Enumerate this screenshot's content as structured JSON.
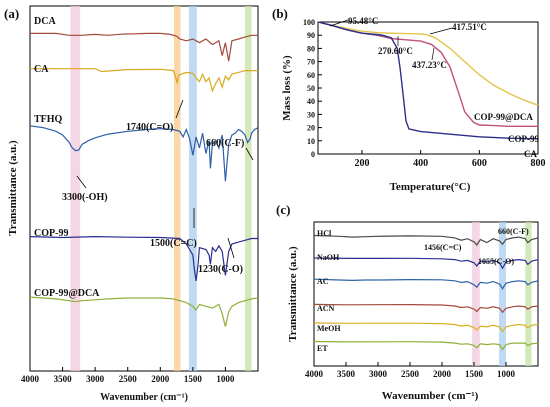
{
  "chart_data": [
    {
      "panel": "(a)",
      "type": "line",
      "title": "",
      "xlabel": "Wavenumber (cm⁻¹)",
      "ylabel": "Transmittance (a.u.)",
      "xlim": [
        4000,
        500
      ],
      "x_ticks": [
        4000,
        3500,
        3000,
        2500,
        2000,
        1500,
        1000
      ],
      "x_tick_labels": [
        "4000",
        "3500",
        "3000",
        "2500",
        "2000",
        "1500",
        "1000"
      ],
      "bands": [
        {
          "x0": 3380,
          "x1": 3230,
          "color": "#f0c8dc"
        },
        {
          "x0": 1790,
          "x1": 1690,
          "color": "#f7c98c"
        },
        {
          "x0": 1560,
          "x1": 1440,
          "color": "#a9cdee"
        },
        {
          "x0": 700,
          "x1": 600,
          "color": "#c6e2a2"
        }
      ],
      "series": [
        {
          "name": "DCA",
          "color": "#a24a3c",
          "base": 0.06,
          "x": [
            4000,
            3600,
            3400,
            3200,
            3000,
            2800,
            2600,
            2400,
            2200,
            2000,
            1850,
            1750,
            1700,
            1600,
            1500,
            1400,
            1300,
            1200,
            1100,
            1050,
            1000,
            950,
            900,
            800,
            700,
            600,
            500
          ],
          "dy": [
            0,
            0,
            0.01,
            0.01,
            0.005,
            0.01,
            0.004,
            0.002,
            0,
            0,
            0.005,
            0.015,
            0.03,
            0.04,
            0.03,
            0.05,
            0.03,
            0.06,
            0.04,
            0.12,
            0.05,
            0.15,
            0.04,
            0.03,
            0.02,
            0.01,
            0.01
          ]
        },
        {
          "name": "CA",
          "color": "#d8a81e",
          "base": 0.165,
          "x": [
            4000,
            3500,
            3000,
            2900,
            2500,
            2000,
            1800,
            1760,
            1740,
            1720,
            1600,
            1500,
            1450,
            1400,
            1350,
            1300,
            1250,
            1200,
            1150,
            1100,
            1050,
            1000,
            950,
            900,
            800,
            700,
            600,
            500
          ],
          "dy": [
            0,
            0,
            0,
            0.015,
            0.005,
            0.003,
            0.01,
            0.05,
            0.08,
            0.035,
            0.02,
            0.025,
            0.05,
            0.07,
            0.03,
            0.07,
            0.05,
            0.12,
            0.08,
            0.05,
            0.1,
            0.04,
            0.06,
            0.03,
            0.02,
            0.01,
            0.01,
            0.01
          ]
        },
        {
          "name": "TFHQ",
          "color": "#2d5fa8",
          "base": 0.335,
          "x": [
            4000,
            3800,
            3600,
            3500,
            3400,
            3350,
            3300,
            3250,
            3200,
            3100,
            3000,
            2800,
            2500,
            2200,
            2000,
            1800,
            1700,
            1650,
            1600,
            1550,
            1500,
            1470,
            1450,
            1400,
            1350,
            1300,
            1250,
            1230,
            1200,
            1150,
            1100,
            1050,
            1000,
            950,
            900,
            850,
            800,
            750,
            700,
            660,
            620,
            600,
            550,
            500
          ],
          "dy": [
            0,
            0.01,
            0.03,
            0.05,
            0.09,
            0.12,
            0.135,
            0.13,
            0.1,
            0.08,
            0.065,
            0.045,
            0.03,
            0.02,
            0.015,
            0.02,
            0.03,
            0.06,
            0.02,
            0.07,
            0.16,
            0.1,
            0.06,
            0.12,
            0.04,
            0.15,
            0.08,
            0.23,
            0.1,
            0.08,
            0.12,
            0.05,
            0.3,
            0.1,
            0.05,
            0.04,
            0.02,
            0.03,
            0.05,
            0.09,
            0.07,
            0.04,
            0.02,
            0.01
          ]
        },
        {
          "name": "COP-99",
          "color": "#2a2f8f",
          "base": 0.665,
          "x": [
            4000,
            3500,
            3000,
            2500,
            2000,
            1700,
            1600,
            1550,
            1500,
            1480,
            1450,
            1420,
            1400,
            1300,
            1250,
            1230,
            1200,
            1150,
            1100,
            1050,
            1000,
            950,
            900,
            800,
            700,
            600,
            500
          ],
          "dy": [
            0,
            0.005,
            0,
            0.003,
            0.005,
            0.01,
            0.04,
            0.07,
            0.1,
            0.17,
            0.24,
            0.15,
            0.06,
            0.07,
            0.1,
            0.15,
            0.06,
            0.08,
            0.05,
            0.08,
            0.21,
            0.08,
            0.04,
            0.03,
            0.02,
            0.01,
            0.01
          ]
        },
        {
          "name": "COP-99@DCA",
          "color": "#8fb03a",
          "base": 0.845,
          "x": [
            4000,
            3600,
            3400,
            3300,
            3200,
            3000,
            2800,
            2500,
            2000,
            1800,
            1700,
            1600,
            1500,
            1450,
            1400,
            1300,
            1200,
            1100,
            1050,
            1000,
            950,
            900,
            800,
            700,
            600,
            500
          ],
          "dy": [
            0,
            0.01,
            0.02,
            0.025,
            0.02,
            0.015,
            0.01,
            0.005,
            0.005,
            0.01,
            0.02,
            0.03,
            0.05,
            0.07,
            0.04,
            0.05,
            0.06,
            0.04,
            0.09,
            0.16,
            0.08,
            0.05,
            0.03,
            0.02,
            0.01,
            0.005
          ]
        }
      ],
      "annotations": [
        {
          "text": "1740(C=O)",
          "x": 1740
        },
        {
          "text": "660(C-F)",
          "x": 660
        },
        {
          "text": "3300(-OH)",
          "x": 3300
        },
        {
          "text": "1500(C=C)",
          "x": 1500
        },
        {
          "text": "1230(C-O)",
          "x": 1230
        }
      ]
    },
    {
      "panel": "(b)",
      "type": "line",
      "title": "",
      "xlabel": "Temperature(°C)",
      "ylabel": "Mass loss (%)",
      "xlim": [
        50,
        800
      ],
      "ylim": [
        0,
        100
      ],
      "x_ticks": [
        200,
        400,
        600,
        800
      ],
      "y_ticks": [
        0,
        10,
        20,
        30,
        40,
        50,
        60,
        70,
        80,
        90,
        100
      ],
      "series": [
        {
          "name": "COP-99@DCA",
          "color": "#e2c44a",
          "x": [
            50,
            95,
            150,
            200,
            250,
            300,
            350,
            400,
            417,
            450,
            500,
            550,
            600,
            650,
            700,
            750,
            800
          ],
          "y": [
            100,
            97.5,
            95,
            93,
            92,
            91.5,
            91.2,
            91,
            90.5,
            88,
            80,
            70,
            60,
            52,
            46,
            41,
            37
          ]
        },
        {
          "name": "COP-99",
          "color": "#c0507e",
          "x": [
            50,
            95,
            150,
            200,
            250,
            270,
            300,
            350,
            400,
            437,
            470,
            500,
            530,
            550,
            580,
            600,
            650,
            700,
            800
          ],
          "y": [
            100,
            97.6,
            94,
            91.5,
            90,
            89,
            87.5,
            86.5,
            85.5,
            83,
            77,
            66,
            46,
            32,
            24,
            22,
            21.5,
            21,
            21
          ]
        },
        {
          "name": "CA",
          "color": "#2b2f8a",
          "x": [
            50,
            95,
            150,
            200,
            250,
            270,
            300,
            320,
            330,
            340,
            350,
            360,
            400,
            500,
            600,
            700,
            800
          ],
          "y": [
            100,
            97.5,
            94,
            91.5,
            90.5,
            90,
            88,
            80,
            65,
            45,
            25,
            19,
            17,
            15,
            13,
            12,
            11.5
          ]
        }
      ],
      "annotations": [
        {
          "text": "95.48°C",
          "x": 95,
          "y": 97.5
        },
        {
          "text": "417.51°C",
          "x": 417,
          "y": 90.5
        },
        {
          "text": "270.60°C",
          "x": 270,
          "y": 90
        },
        {
          "text": "437.23°C",
          "x": 437,
          "y": 83
        }
      ]
    },
    {
      "panel": "(c)",
      "type": "line",
      "title": "",
      "xlabel": "Wavenumber (cm⁻¹)",
      "ylabel": "Transmittance (a.u.)",
      "xlim": [
        4000,
        500
      ],
      "x_ticks": [
        4000,
        3500,
        3000,
        2500,
        2000,
        1500,
        1000
      ],
      "x_tick_labels": [
        "4000",
        "3500",
        "3000",
        "2500",
        "2000",
        "1500",
        "1000"
      ],
      "bands": [
        {
          "x0": 1530,
          "x1": 1410,
          "color": "#f0c8dc"
        },
        {
          "x0": 1110,
          "x1": 1000,
          "color": "#a9cdee"
        },
        {
          "x0": 700,
          "x1": 600,
          "color": "#c6e2a2"
        }
      ],
      "series": [
        {
          "name": "HCl",
          "color": "#4a4a4a",
          "base": 0.08,
          "x": [
            4000,
            3600,
            3400,
            3200,
            3000,
            2500,
            2000,
            1800,
            1700,
            1600,
            1500,
            1456,
            1400,
            1300,
            1200,
            1100,
            1055,
            1000,
            900,
            800,
            700,
            660,
            600,
            500
          ],
          "dy": [
            0,
            0.01,
            0.02,
            0.015,
            0.01,
            0.005,
            0.01,
            0.03,
            0.06,
            0.04,
            0.08,
            0.12,
            0.05,
            0.09,
            0.04,
            0.07,
            0.11,
            0.05,
            0.03,
            0.02,
            0.04,
            0.09,
            0.05,
            0.03
          ]
        },
        {
          "name": "NaOH",
          "color": "#2a2f8f",
          "base": 0.25,
          "x": [
            4000,
            3500,
            3000,
            2500,
            2000,
            1800,
            1700,
            1600,
            1500,
            1456,
            1400,
            1300,
            1200,
            1100,
            1055,
            1000,
            900,
            800,
            700,
            660,
            600,
            500
          ],
          "dy": [
            0,
            0.005,
            0.005,
            0.004,
            0.01,
            0.02,
            0.04,
            0.03,
            0.06,
            0.1,
            0.04,
            0.05,
            0.03,
            0.06,
            0.13,
            0.05,
            0.03,
            0.02,
            0.03,
            0.08,
            0.04,
            0.02
          ]
        },
        {
          "name": "AC",
          "color": "#2d62a8",
          "base": 0.41,
          "x": [
            4000,
            3600,
            3400,
            3200,
            3000,
            2500,
            2000,
            1800,
            1700,
            1600,
            1500,
            1456,
            1400,
            1300,
            1200,
            1100,
            1055,
            1000,
            900,
            800,
            700,
            660,
            600,
            500
          ],
          "dy": [
            0,
            0.01,
            0.015,
            0.01,
            0.01,
            0.005,
            0.008,
            0.02,
            0.04,
            0.03,
            0.07,
            0.1,
            0.04,
            0.05,
            0.03,
            0.06,
            0.12,
            0.05,
            0.03,
            0.02,
            0.03,
            0.07,
            0.04,
            0.02
          ]
        },
        {
          "name": "ACN",
          "color": "#a24a3c",
          "base": 0.6,
          "x": [
            4000,
            3500,
            3000,
            2500,
            2000,
            1800,
            1700,
            1600,
            1500,
            1456,
            1400,
            1300,
            1200,
            1100,
            1055,
            1000,
            900,
            800,
            700,
            660,
            600,
            500
          ],
          "dy": [
            0,
            0.005,
            0.004,
            0.003,
            0.008,
            0.02,
            0.04,
            0.03,
            0.06,
            0.09,
            0.04,
            0.05,
            0.03,
            0.05,
            0.1,
            0.05,
            0.03,
            0.02,
            0.03,
            0.06,
            0.03,
            0.02
          ]
        },
        {
          "name": "MeOH",
          "color": "#d8b21e",
          "base": 0.74,
          "x": [
            4000,
            3500,
            3000,
            2500,
            2000,
            1800,
            1700,
            1600,
            1500,
            1456,
            1400,
            1300,
            1200,
            1100,
            1055,
            1000,
            900,
            800,
            700,
            660,
            600,
            500
          ],
          "dy": [
            0,
            0.005,
            0.004,
            0.003,
            0.008,
            0.02,
            0.04,
            0.03,
            0.06,
            0.09,
            0.04,
            0.05,
            0.03,
            0.05,
            0.11,
            0.05,
            0.03,
            0.02,
            0.03,
            0.06,
            0.03,
            0.02
          ]
        },
        {
          "name": "ET",
          "color": "#8fb03a",
          "base": 0.88,
          "x": [
            4000,
            3500,
            3000,
            2500,
            2000,
            1800,
            1700,
            1600,
            1500,
            1456,
            1400,
            1300,
            1200,
            1100,
            1055,
            1000,
            900,
            800,
            700,
            660,
            600,
            500
          ],
          "dy": [
            0,
            0.005,
            0.004,
            0.003,
            0.008,
            0.02,
            0.035,
            0.03,
            0.05,
            0.08,
            0.03,
            0.04,
            0.03,
            0.04,
            0.1,
            0.04,
            0.02,
            0.02,
            0.02,
            0.05,
            0.03,
            0.02
          ]
        }
      ],
      "annotations": [
        {
          "text": "1456(C=C)",
          "x": 1456
        },
        {
          "text": "1055(C-O)",
          "x": 1055
        },
        {
          "text": "660(C-F)",
          "x": 660
        }
      ]
    }
  ]
}
